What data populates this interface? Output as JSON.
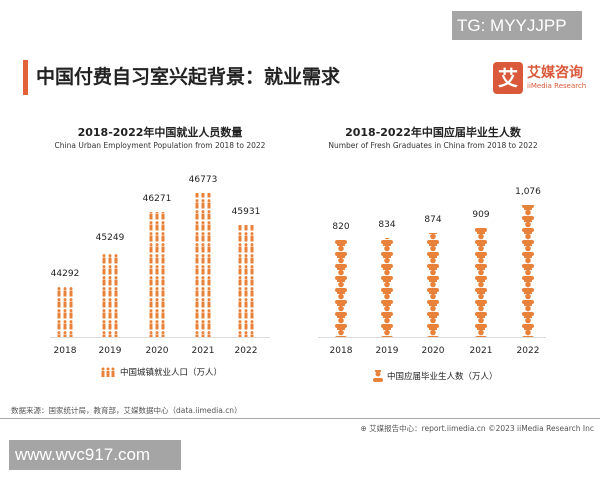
{
  "watermarks": {
    "top": "TG: MYYJJPP",
    "bottom": "www.wvc917.com"
  },
  "header": {
    "title": "中国付费自习室兴起背景：就业需求",
    "logo_mark": "艾",
    "logo_cn": "艾媒咨询",
    "logo_en": "iiMedia Research"
  },
  "colors": {
    "accent": "#e2633a",
    "icon": "#e8823a"
  },
  "chart_data": [
    {
      "type": "bar",
      "style": "pictogram",
      "icon": "people-icon",
      "title": "2018-2022年中国就业人员数量",
      "subtitle": "China Urban Employment Population from 2018 to 2022",
      "categories": [
        "2018",
        "2019",
        "2020",
        "2021",
        "2022"
      ],
      "values": [
        44292,
        45249,
        46271,
        46773,
        45931
      ],
      "value_labels": [
        "44292",
        "45249",
        "46271",
        "46773",
        "45931"
      ],
      "legend": "中国城镇就业人口（万人）",
      "legend_position": "bottom",
      "grid": false
    },
    {
      "type": "bar",
      "style": "pictogram",
      "icon": "graduate-icon",
      "title": "2018-2022年中国应届毕业生人数",
      "subtitle": "Number of Fresh Graduates in China from 2018 to 2022",
      "categories": [
        "2018",
        "2019",
        "2020",
        "2021",
        "2022"
      ],
      "values": [
        820,
        834,
        874,
        909,
        1076
      ],
      "value_labels": [
        "820",
        "834",
        "874",
        "909",
        "1,076"
      ],
      "legend": "中国应届毕业生人数（万人）",
      "legend_position": "bottom",
      "grid": false
    }
  ],
  "footer": {
    "source": "数据来源：国家统计局，教育部，艾媒数据中心（data.iimedia.cn）",
    "credit": "艾媒报告中心：report.iimedia.cn  ©2023  iiMedia Research  Inc"
  }
}
